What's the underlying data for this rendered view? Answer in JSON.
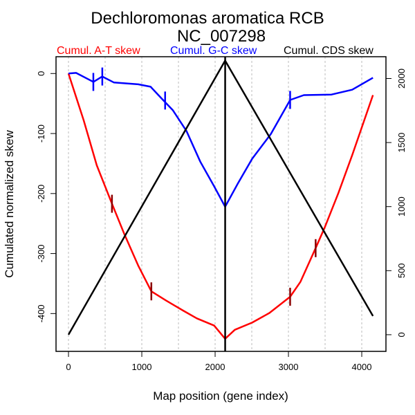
{
  "chart_data": {
    "type": "line",
    "title": "Dechloromonas aromatica RCB",
    "subtitle": "NC_007298",
    "xlabel": "Map position (gene index)",
    "ylabel": "Cumulated normalized skew",
    "xlim": [
      -170,
      4330
    ],
    "ylim_left": [
      -463,
      28
    ],
    "ylim_right": [
      -130,
      2170
    ],
    "x_ticks": [
      0,
      1000,
      2000,
      3000,
      4000
    ],
    "x_tick_labels": [
      "0",
      "1000",
      "2000",
      "3000",
      "4000"
    ],
    "y_left_ticks": [
      0,
      -100,
      -200,
      -300,
      -400
    ],
    "y_left_tick_labels": [
      "0",
      "-100",
      "-200",
      "-300",
      "-400"
    ],
    "y_right_ticks": [
      0,
      500,
      1000,
      1500,
      2000
    ],
    "y_right_tick_labels": [
      "0",
      "500",
      "1000",
      "1500",
      "2000"
    ],
    "grid_x": [
      0,
      500,
      1000,
      1500,
      2000,
      2500,
      3000,
      3500,
      4000
    ],
    "grid": "vertical dotted",
    "legend_position": "top",
    "terminus_position": 2137,
    "series": [
      {
        "name": "Cumul. A-T skew",
        "axis": "left",
        "color": "#ff0000",
        "x": [
          0,
          207,
          386,
          593,
          763,
          951,
          1130,
          1328,
          1563,
          1751,
          1987,
          2137,
          2269,
          2505,
          2740,
          3023,
          3164,
          3371,
          3493,
          3682,
          3870,
          4153
        ],
        "y": [
          0,
          -78,
          -153,
          -217,
          -268,
          -320,
          -363,
          -378,
          -395,
          -408,
          -420,
          -442,
          -427,
          -415,
          -399,
          -372,
          -347,
          -291,
          -257,
          -199,
          -136,
          -36
        ]
      },
      {
        "name": "Cumul. G-C skew",
        "axis": "left",
        "color": "#0000ff",
        "x": [
          0,
          104,
          339,
          461,
          621,
          951,
          1120,
          1281,
          1422,
          1610,
          1798,
          1987,
          2137,
          2316,
          2505,
          2759,
          3023,
          3211,
          3588,
          3870,
          4153
        ],
        "y": [
          0,
          1,
          -14,
          -5,
          -15,
          -18,
          -22,
          -43,
          -61,
          -96,
          -147,
          -188,
          -222,
          -182,
          -142,
          -101,
          -44,
          -36,
          -35,
          -27,
          -7
        ]
      },
      {
        "name": "Cumul. CDS skew",
        "axis": "right",
        "color": "#000000",
        "x": [
          0,
          2137,
          4153
        ],
        "y": [
          0,
          2140,
          146
        ]
      }
    ],
    "markers": [
      {
        "series": "Cumul. G-C skew",
        "color": "#0000ff",
        "x": [
          339,
          461,
          1318,
          3023
        ],
        "y": [
          -14,
          -5,
          -45,
          -44
        ]
      },
      {
        "series": "Cumul. A-T skew",
        "color": "#8b0000",
        "x": [
          593,
          1130,
          3023,
          3371
        ],
        "y": [
          -217,
          -363,
          -372,
          -291
        ]
      }
    ]
  }
}
